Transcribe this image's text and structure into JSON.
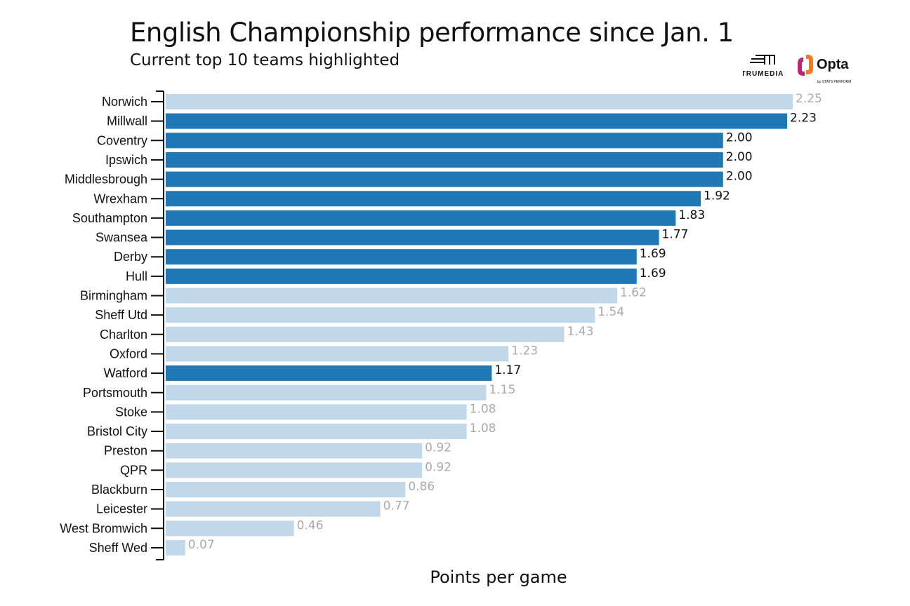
{
  "logos": {
    "trumedia": "TRUMEDIA",
    "opta": "Opta",
    "opta_sub": "by STATS PERFORM"
  },
  "chart_data": {
    "type": "bar",
    "orientation": "horizontal",
    "title": "English Championship performance since Jan. 1",
    "subtitle": "Current top 10 teams highlighted",
    "xlabel": "Points per game",
    "ylabel": "",
    "xlim": [
      0,
      2.25
    ],
    "grid": false,
    "colors": {
      "highlighted": "#1f77b4",
      "other": "#c1d8ea",
      "highlighted_label": "#111111",
      "other_label": "#aaaaaa"
    },
    "categories": [
      "Norwich",
      "Millwall",
      "Coventry",
      "Ipswich",
      "Middlesbrough",
      "Wrexham",
      "Southampton",
      "Swansea",
      "Derby",
      "Hull",
      "Birmingham",
      "Sheff Utd",
      "Charlton",
      "Oxford",
      "Watford",
      "Portsmouth",
      "Stoke",
      "Bristol City",
      "Preston",
      "QPR",
      "Blackburn",
      "Leicester",
      "West Bromwich",
      "Sheff Wed"
    ],
    "values": [
      2.25,
      2.23,
      2.0,
      2.0,
      2.0,
      1.92,
      1.83,
      1.77,
      1.69,
      1.69,
      1.62,
      1.54,
      1.43,
      1.23,
      1.17,
      1.15,
      1.08,
      1.08,
      0.92,
      0.92,
      0.86,
      0.77,
      0.46,
      0.07
    ],
    "labels": [
      "2.25",
      "2.23",
      "2.00",
      "2.00",
      "2.00",
      "1.92",
      "1.83",
      "1.77",
      "1.69",
      "1.69",
      "1.62",
      "1.54",
      "1.43",
      "1.23",
      "1.17",
      "1.15",
      "1.08",
      "1.08",
      "0.92",
      "0.92",
      "0.86",
      "0.77",
      "0.46",
      "0.07"
    ],
    "highlighted": [
      false,
      true,
      true,
      true,
      true,
      true,
      true,
      true,
      true,
      true,
      false,
      false,
      false,
      false,
      true,
      false,
      false,
      false,
      false,
      false,
      false,
      false,
      false,
      false
    ]
  }
}
